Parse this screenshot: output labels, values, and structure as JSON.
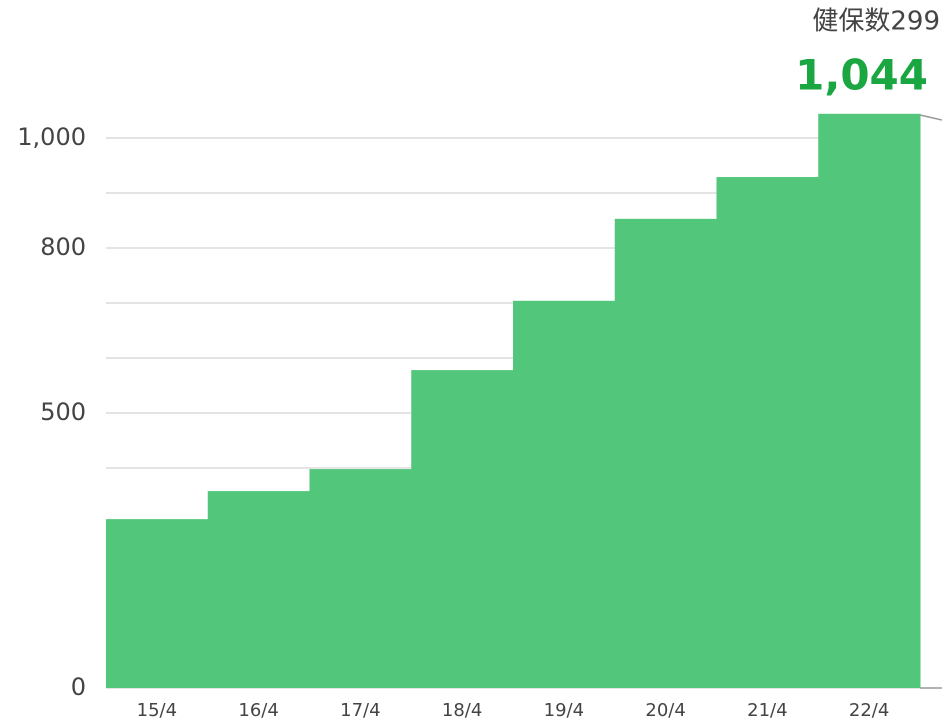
{
  "chart_data": {
    "type": "bar",
    "categories": [
      "15/4",
      "16/4",
      "17/4",
      "18/4",
      "19/4",
      "20/4",
      "21/4",
      "22/4"
    ],
    "values": [
      307,
      358,
      398,
      578,
      704,
      853,
      929,
      1044
    ],
    "value_labels": [
      null,
      null,
      null,
      null,
      null,
      null,
      null,
      "1,044"
    ],
    "annotation": "健保数299",
    "color": "#52c67a",
    "label_color": "#1aa640",
    "ylim": [
      0,
      1000
    ],
    "yticks": [
      0,
      500,
      800,
      {
        "value": 1000,
        "label": "1,000"
      }
    ],
    "minor_yticks": [
      400,
      600,
      700,
      900
    ],
    "grid": true
  }
}
